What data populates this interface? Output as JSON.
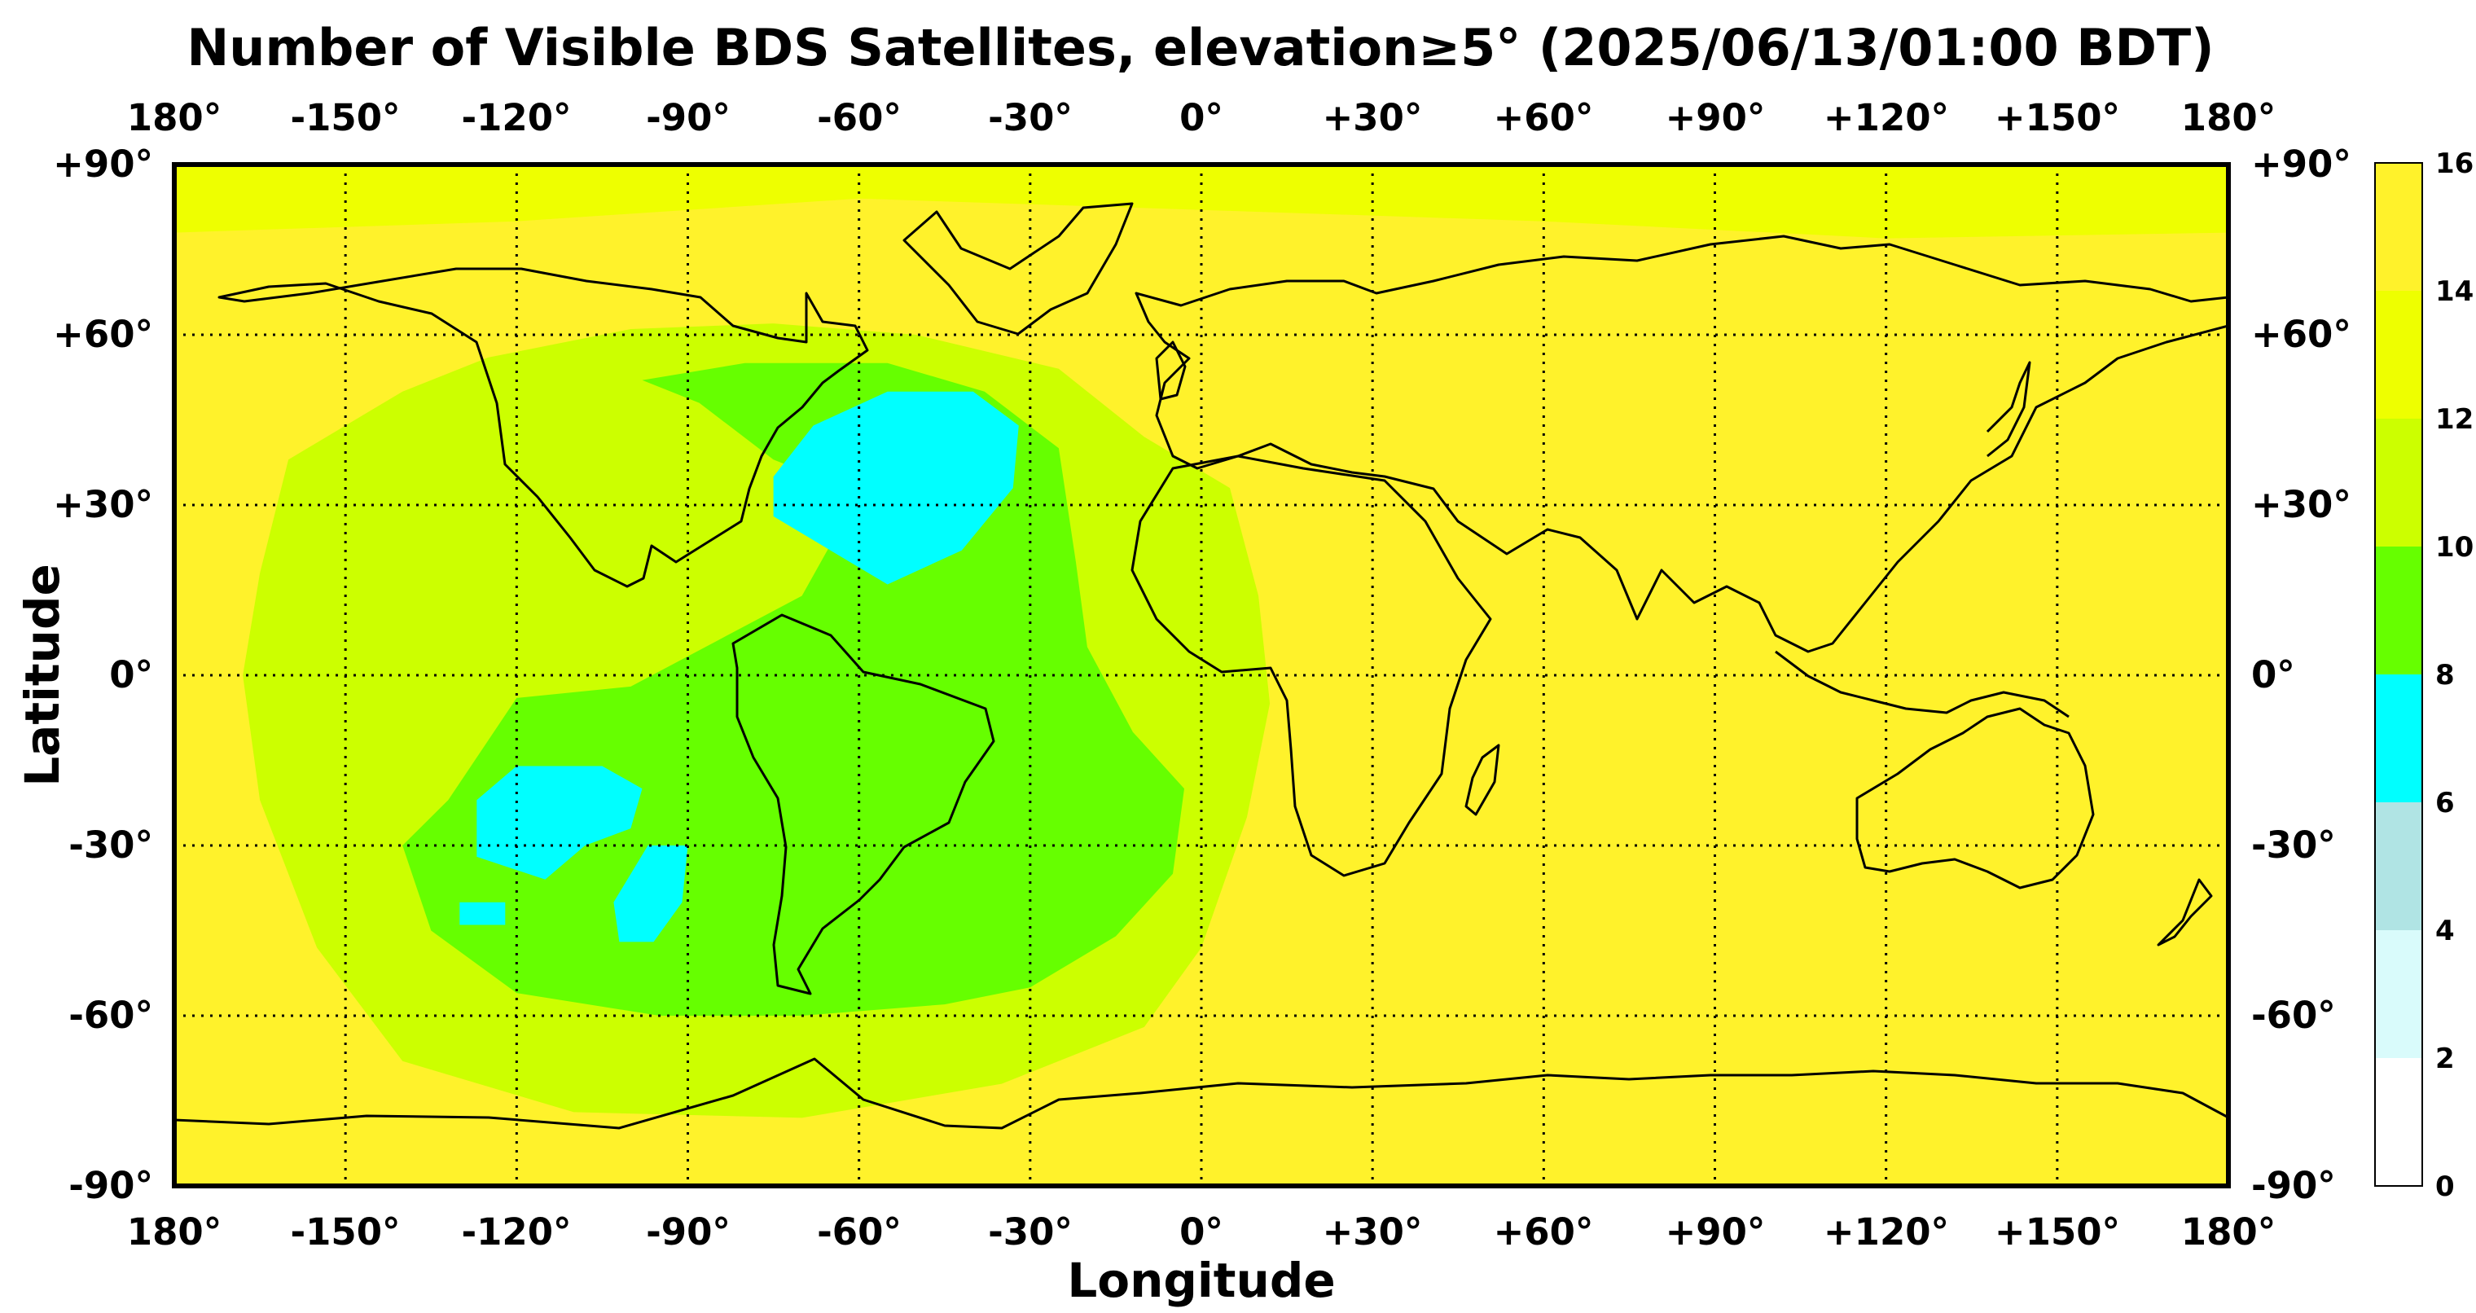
{
  "title": "Number of Visible BDS Satellites, elevation≥5° (2025/06/13/01:00 BDT)",
  "xlabel": "Longitude",
  "ylabel": "Latitude",
  "x_ticks": [
    "180°",
    "-150°",
    "-120°",
    "-90°",
    "-60°",
    "-30°",
    "0°",
    "+30°",
    "+60°",
    "+90°",
    "+120°",
    "+150°",
    "180°"
  ],
  "y_ticks": [
    "+90°",
    "+60°",
    "+30°",
    "0°",
    "-30°",
    "-60°",
    "-90°"
  ],
  "colorbar": {
    "ticks": [
      "0",
      "2",
      "4",
      "6",
      "8",
      "10",
      "12",
      "14",
      "16"
    ],
    "colors": [
      "#ffffff",
      "#d9fbfb",
      "#b0e4e4",
      "#00ffff",
      "#66ff00",
      "#ccff00",
      "#eeff00",
      "#fff22b"
    ]
  },
  "chart_data": {
    "type": "heatmap",
    "title": "Number of Visible BDS Satellites, elevation≥5° (2025/06/13/01:00 BDT)",
    "xlabel": "Longitude",
    "ylabel": "Latitude",
    "xlim": [
      -180,
      180
    ],
    "ylim": [
      -90,
      90
    ],
    "grid": true,
    "colorbar_range": [
      0,
      16
    ],
    "colorbar_levels": [
      0,
      2,
      4,
      6,
      8,
      10,
      12,
      14,
      16
    ],
    "background_value": 15,
    "regions": [
      {
        "value": 13,
        "label": "12-14",
        "polygon": [
          [
            -180,
            90
          ],
          [
            180,
            90
          ],
          [
            180,
            78
          ],
          [
            120,
            77
          ],
          [
            60,
            80
          ],
          [
            0,
            82
          ],
          [
            -60,
            84
          ],
          [
            -120,
            80
          ],
          [
            -180,
            78
          ]
        ]
      },
      {
        "value": 11,
        "label": "10-12",
        "polygon": [
          [
            -165,
            18
          ],
          [
            -160,
            38
          ],
          [
            -140,
            50
          ],
          [
            -125,
            56
          ],
          [
            -100,
            61
          ],
          [
            -75,
            62
          ],
          [
            -50,
            60
          ],
          [
            -25,
            54
          ],
          [
            -10,
            42
          ],
          [
            5,
            33
          ],
          [
            10,
            14
          ],
          [
            12,
            -5
          ],
          [
            8,
            -25
          ],
          [
            0,
            -48
          ],
          [
            -10,
            -62
          ],
          [
            -35,
            -72
          ],
          [
            -70,
            -78
          ],
          [
            -110,
            -77
          ],
          [
            -140,
            -68
          ],
          [
            -155,
            -48
          ],
          [
            -165,
            -22
          ],
          [
            -168,
            0
          ]
        ]
      },
      {
        "value": 9,
        "label": "8-10",
        "polygon": [
          [
            -132,
            -22
          ],
          [
            -120,
            -4
          ],
          [
            -100,
            -2
          ],
          [
            -85,
            6
          ],
          [
            -70,
            14
          ],
          [
            -60,
            32
          ],
          [
            -75,
            38
          ],
          [
            -88,
            48
          ],
          [
            -98,
            52
          ],
          [
            -80,
            55
          ],
          [
            -55,
            55
          ],
          [
            -38,
            50
          ],
          [
            -25,
            40
          ],
          [
            -22,
            20
          ],
          [
            -20,
            5
          ],
          [
            -12,
            -10
          ],
          [
            -3,
            -20
          ],
          [
            -5,
            -35
          ],
          [
            -15,
            -46
          ],
          [
            -30,
            -55
          ],
          [
            -45,
            -58
          ],
          [
            -70,
            -60
          ],
          [
            -95,
            -60
          ],
          [
            -120,
            -56
          ],
          [
            -135,
            -45
          ],
          [
            -140,
            -30
          ]
        ]
      },
      {
        "value": 7,
        "label": "6-8",
        "polygon": [
          [
            -75,
            35
          ],
          [
            -68,
            44
          ],
          [
            -55,
            50
          ],
          [
            -40,
            50
          ],
          [
            -32,
            44
          ],
          [
            -33,
            33
          ],
          [
            -42,
            22
          ],
          [
            -55,
            16
          ],
          [
            -65,
            22
          ],
          [
            -75,
            28
          ]
        ]
      },
      {
        "value": 7,
        "label": "6-8",
        "polygon": [
          [
            -127,
            -22
          ],
          [
            -120,
            -16
          ],
          [
            -105,
            -16
          ],
          [
            -98,
            -20
          ],
          [
            -100,
            -27
          ],
          [
            -108,
            -30
          ],
          [
            -115,
            -36
          ],
          [
            -127,
            -32
          ]
        ]
      },
      {
        "value": 7,
        "label": "6-8",
        "polygon": [
          [
            -103,
            -40
          ],
          [
            -97,
            -30
          ],
          [
            -90,
            -30
          ],
          [
            -91,
            -40
          ],
          [
            -96,
            -47
          ],
          [
            -102,
            -47
          ]
        ]
      },
      {
        "value": 7,
        "label": "6-8",
        "polygon": [
          [
            -130,
            -40
          ],
          [
            -122,
            -40
          ],
          [
            -122,
            -44
          ],
          [
            -130,
            -44
          ]
        ]
      }
    ]
  }
}
